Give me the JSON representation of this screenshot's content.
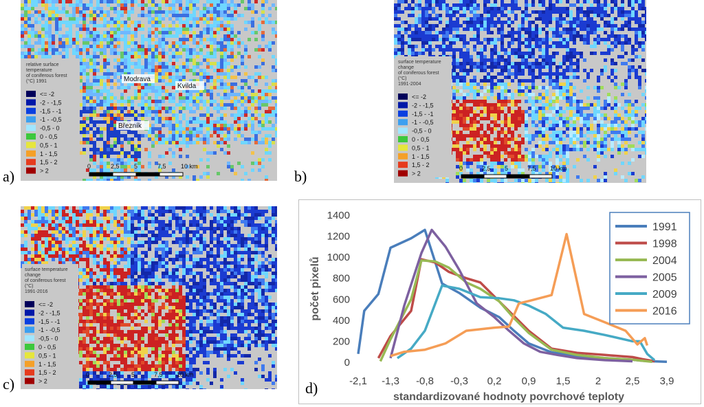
{
  "panels": [
    {
      "letter": "a)",
      "legend_title": [
        "relative surface",
        "temperature",
        "of coniferous forest",
        "(°C) 1991"
      ],
      "places": [
        "Modrava",
        "Kvilda",
        "Březník"
      ],
      "palette": [
        "#6fb7ff",
        "#3b6fe0",
        "#1a3fc7",
        "#6fd7ff",
        "#67c76a",
        "#d7e04a",
        "#f3c24a",
        "#e56a3a",
        "#cc2a2a"
      ]
    },
    {
      "letter": "b)",
      "legend_title": [
        "surface temperature",
        "change",
        "of coniferous forest",
        "(°C)",
        "1991-2004"
      ],
      "palette": [
        "#1b3bd1",
        "#1328a8",
        "#3f7af0",
        "#6fd7ff",
        "#b8ecff",
        "#f0d24a",
        "#cc2222",
        "#e04a2a",
        "#9fdc5a"
      ]
    },
    {
      "letter": "c)",
      "legend_title": [
        "surface temperature",
        "change",
        "of coniferous forest",
        "(°C)",
        "1991-2016"
      ],
      "palette": [
        "#1b3bd1",
        "#1328a8",
        "#3f7af0",
        "#6fd7ff",
        "#cc2222",
        "#e04a2a",
        "#f0d24a",
        "#f09a3a",
        "#9fdc5a"
      ]
    }
  ],
  "map_legend": {
    "labels": [
      "<= -2",
      "-2 - -1,5",
      "-1,5 - -1",
      "-1 - -0,5",
      "-0,5 - 0",
      "0 - 0,5",
      "0,5 - 1",
      "1 - 1,5",
      "1,5 - 2",
      "> 2"
    ],
    "colors": [
      "#00005a",
      "#0018a8",
      "#0a3fe0",
      "#3ca0f0",
      "#a0e6ff",
      "#3cc83c",
      "#e6e63c",
      "#f5a028",
      "#e63c1e",
      "#a00000"
    ]
  },
  "scale_bar": {
    "labels": [
      "0",
      "2,5",
      "5",
      "7,5",
      "10 km"
    ]
  },
  "chart_letter": "d)",
  "chart_data": {
    "type": "line",
    "xlabel": "standardizované hodnoty povrchové teploty",
    "ylabel": "počet pixelů",
    "ylim": [
      0,
      1400
    ],
    "yticks": [
      0,
      200,
      400,
      600,
      800,
      1000,
      1200,
      1400
    ],
    "xticks": [
      "-2,1",
      "-1,3",
      "-0,8",
      "-0,3",
      "0,2",
      "0,9",
      "1,5",
      "2",
      "2,5",
      "3,9"
    ],
    "legend_position": "top-right",
    "series": [
      {
        "name": "1991",
        "color": "#4a7ebb",
        "x": [
          -2.1,
          -1.95,
          -1.6,
          -1.3,
          -1.0,
          -0.8,
          -0.55,
          -0.3,
          0.0,
          0.3,
          0.6,
          0.9,
          1.3,
          1.7,
          2.1,
          2.5,
          2.9,
          3.3,
          3.9
        ],
        "y": [
          80,
          490,
          650,
          1090,
          1180,
          1260,
          750,
          660,
          520,
          430,
          300,
          180,
          95,
          60,
          40,
          25,
          15,
          10,
          5
        ]
      },
      {
        "name": "1998",
        "color": "#be4b48",
        "x": [
          -1.6,
          -1.3,
          -1.0,
          -0.85,
          -0.65,
          -0.45,
          -0.2,
          0.0,
          0.3,
          0.6,
          0.9,
          1.3,
          1.7,
          2.1,
          2.5,
          2.9,
          3.4
        ],
        "y": [
          40,
          250,
          490,
          980,
          950,
          860,
          800,
          760,
          580,
          440,
          300,
          130,
          90,
          70,
          50,
          30,
          10
        ]
      },
      {
        "name": "2004",
        "color": "#98b954",
        "x": [
          -1.55,
          -1.3,
          -1.0,
          -0.85,
          -0.65,
          -0.45,
          -0.2,
          0.0,
          0.3,
          0.6,
          0.9,
          1.3,
          1.7,
          2.1,
          2.5,
          2.9,
          3.3
        ],
        "y": [
          10,
          220,
          600,
          970,
          960,
          900,
          760,
          700,
          580,
          420,
          280,
          120,
          70,
          40,
          25,
          15,
          5
        ]
      },
      {
        "name": "2005",
        "color": "#7d60a0",
        "x": [
          -1.3,
          -1.1,
          -0.85,
          -0.7,
          -0.5,
          -0.3,
          -0.05,
          0.2,
          0.5,
          0.8,
          1.1,
          1.4,
          1.7,
          2.1,
          2.5
        ],
        "y": [
          40,
          540,
          1040,
          1260,
          1100,
          880,
          560,
          430,
          300,
          180,
          100,
          70,
          40,
          20,
          10
        ]
      },
      {
        "name": "2009",
        "color": "#46aac5",
        "x": [
          -1.2,
          -1.0,
          -0.8,
          -0.55,
          -0.3,
          0.0,
          0.3,
          0.6,
          0.9,
          1.2,
          1.5,
          1.8,
          2.1,
          2.5,
          2.8,
          3.1,
          3.4
        ],
        "y": [
          40,
          130,
          300,
          730,
          700,
          620,
          610,
          590,
          540,
          460,
          330,
          300,
          260,
          200,
          200,
          80,
          20
        ]
      },
      {
        "name": "2016",
        "color": "#f59d56",
        "x": [
          -1.3,
          -1.1,
          -0.8,
          -0.5,
          -0.2,
          0.2,
          0.5,
          0.7,
          0.95,
          1.3,
          1.55,
          1.8,
          2.1,
          2.4,
          2.7,
          3.0,
          3.1
        ],
        "y": [
          60,
          100,
          120,
          180,
          300,
          330,
          340,
          560,
          590,
          640,
          1220,
          460,
          380,
          300,
          170,
          230,
          160
        ]
      }
    ]
  }
}
